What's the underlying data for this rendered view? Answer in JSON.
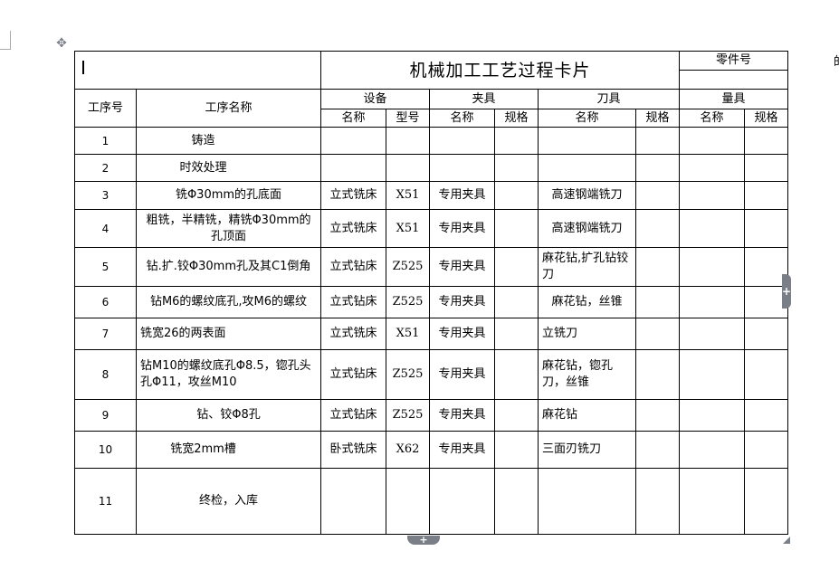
{
  "card": {
    "title": "机械加工工艺过程卡片",
    "part_no_label": "零件号",
    "part_no_value": "",
    "headers": {
      "seq": "工序号",
      "name": "工序名称",
      "equipment": "设备",
      "fixture": "夹具",
      "tool": "刀具",
      "gauge": "量具",
      "sub_name": "名称",
      "sub_model": "型号",
      "sub_spec": "规格"
    },
    "rows": [
      {
        "seq": "1",
        "name": "铸造",
        "eq_name": "",
        "eq_model": "",
        "fx_name": "",
        "fx_spec": "",
        "tool_name": "",
        "tool_spec": "",
        "gauge_name": "",
        "gauge_spec": ""
      },
      {
        "seq": "2",
        "name": "时效处理",
        "eq_name": "",
        "eq_model": "",
        "fx_name": "",
        "fx_spec": "",
        "tool_name": "",
        "tool_spec": "",
        "gauge_name": "",
        "gauge_spec": ""
      },
      {
        "seq": "3",
        "name": "铣Φ30mm的孔底面",
        "eq_name": "立式铣床",
        "eq_model": "X51",
        "fx_name": "专用夹具",
        "fx_spec": "",
        "tool_name": "高速钢端铣刀",
        "tool_spec": "",
        "gauge_name": "",
        "gauge_spec": ""
      },
      {
        "seq": "4",
        "name": "粗铣，半精铣，精铣Φ30mm的孔顶面",
        "eq_name": "立式铣床",
        "eq_model": "X51",
        "fx_name": "专用夹具",
        "fx_spec": "",
        "tool_name": "高速钢端铣刀",
        "tool_spec": "",
        "gauge_name": "",
        "gauge_spec": ""
      },
      {
        "seq": "5",
        "name": "钻.扩.铰Φ30mm孔及其C1倒角",
        "eq_name": "立式钻床",
        "eq_model": "Z525",
        "fx_name": "专用夹具",
        "fx_spec": "",
        "tool_name": "麻花钻,扩孔钻铰刀",
        "tool_spec": "",
        "gauge_name": "",
        "gauge_spec": ""
      },
      {
        "seq": "6",
        "name": "钻M6的螺纹底孔,攻M6的螺纹",
        "eq_name": "立式钻床",
        "eq_model": "Z525",
        "fx_name": "专用夹具",
        "fx_spec": "",
        "tool_name": "麻花钻，丝锥",
        "tool_spec": "",
        "gauge_name": "",
        "gauge_spec": ""
      },
      {
        "seq": "7",
        "name": "铣宽26的两表面",
        "eq_name": "立式铣床",
        "eq_model": "X51",
        "fx_name": "专用夹具",
        "fx_spec": "",
        "tool_name": "立铣刀",
        "tool_spec": "",
        "gauge_name": "",
        "gauge_spec": ""
      },
      {
        "seq": "8",
        "name": "钻M10的螺纹底孔Φ8.5，锪孔头孔Φ11，攻丝M10",
        "eq_name": "立式钻床",
        "eq_model": "Z525",
        "fx_name": "专用夹具",
        "fx_spec": "",
        "tool_name": "麻花钻，锪孔刀，丝锥",
        "tool_spec": "",
        "gauge_name": "",
        "gauge_spec": ""
      },
      {
        "seq": "9",
        "name": "钻、铰Φ8孔",
        "eq_name": "立式钻床",
        "eq_model": "Z525",
        "fx_name": "专用夹具",
        "fx_spec": "",
        "tool_name": "麻花钻",
        "tool_spec": "",
        "gauge_name": "",
        "gauge_spec": ""
      },
      {
        "seq": "10",
        "name": "铣宽2mm槽",
        "eq_name": "卧式铣床",
        "eq_model": "X62",
        "fx_name": "专用夹具",
        "fx_spec": "",
        "tool_name": "三面刃铣刀",
        "tool_spec": "",
        "gauge_name": "",
        "gauge_spec": ""
      },
      {
        "seq": "11",
        "name": "终检，入库",
        "eq_name": "",
        "eq_model": "",
        "fx_name": "",
        "fx_spec": "",
        "tool_name": "",
        "tool_spec": "",
        "gauge_name": "",
        "gauge_spec": ""
      }
    ]
  },
  "edge_text": "的",
  "icons": {
    "move": "move-handle-icon",
    "add_column": "plus-icon",
    "add_row": "plus-icon",
    "resize": "resize-handle-icon"
  },
  "colors": {
    "handle": "#7a7f87",
    "border": "#000000"
  }
}
